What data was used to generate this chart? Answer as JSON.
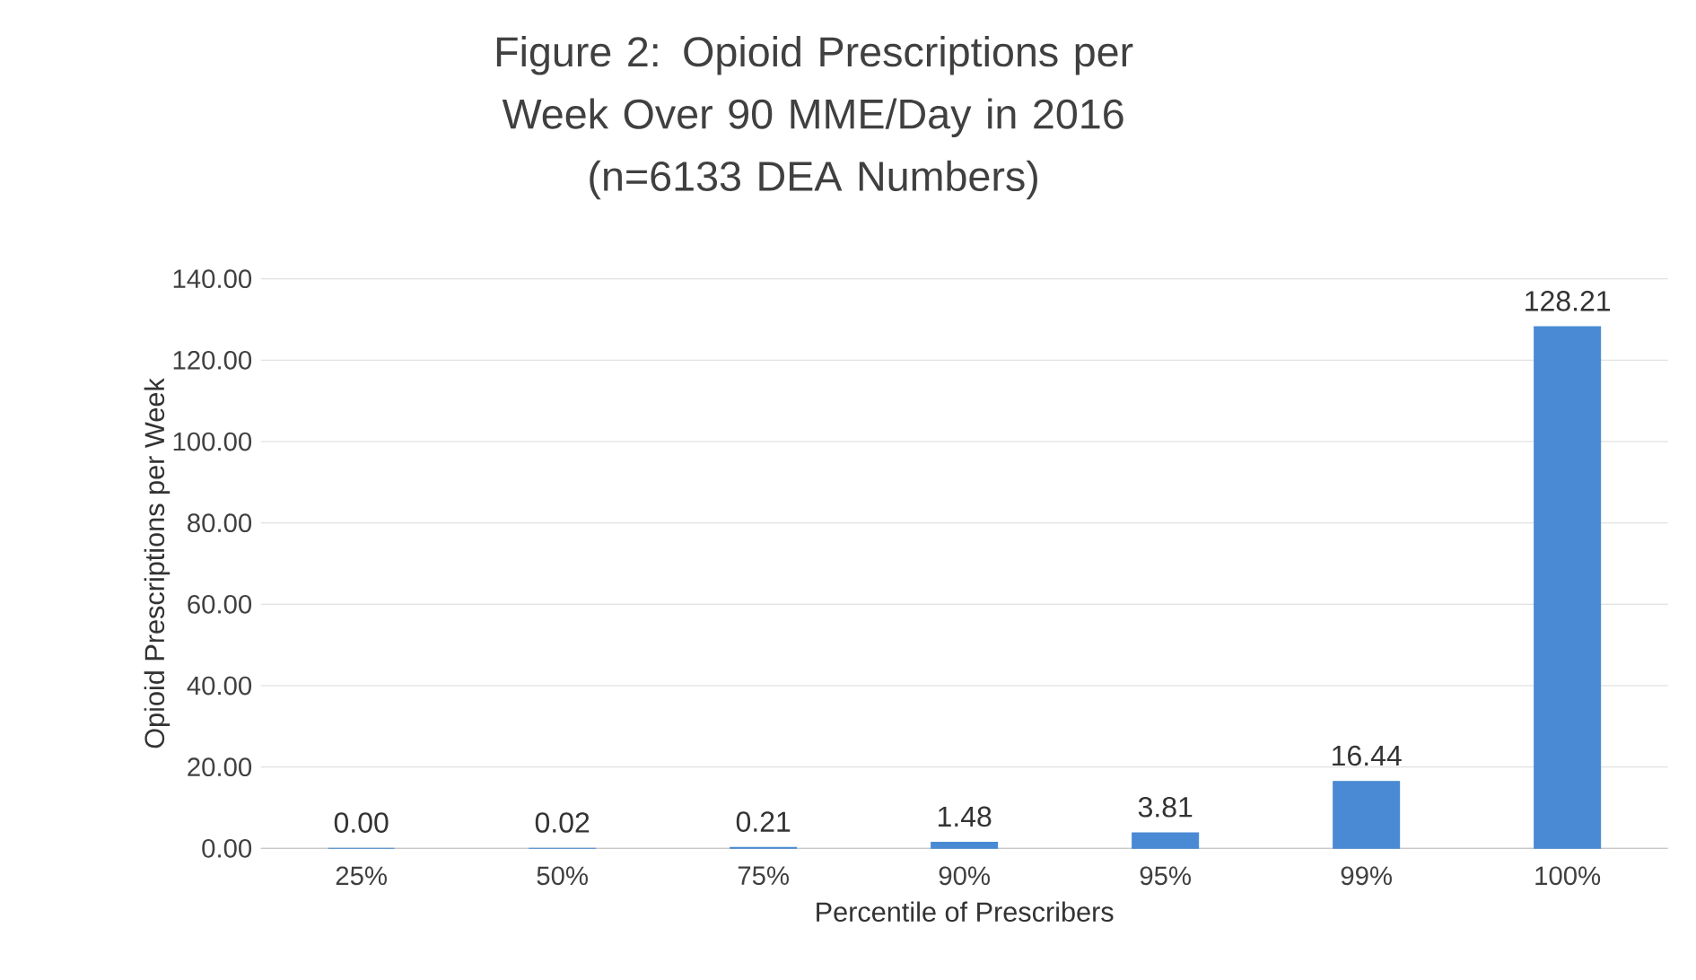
{
  "chart_data": {
    "type": "bar",
    "title": "Figure 2: Opioid Prescriptions per Week Over 90 MME/Day in 2016",
    "subtitle": "(n=6133 DEA Numbers)",
    "xlabel": "Percentile of Prescribers",
    "ylabel": "Opioid Prescriptions per Week",
    "categories": [
      "25%",
      "50%",
      "75%",
      "90%",
      "95%",
      "99%",
      "100%"
    ],
    "values": [
      0,
      0.02,
      0.21,
      1.48,
      3.81,
      16.44,
      128.21
    ],
    "value_labels": [
      "0.00",
      "0.02",
      "0.21",
      "1.48",
      "3.81",
      "16.44",
      "128.21"
    ],
    "color": "#4a8ad4",
    "ylim": [
      0,
      140
    ],
    "yticks": [
      {
        "value": 0,
        "label": "0.00"
      },
      {
        "value": 20,
        "label": "20.00"
      },
      {
        "value": 40,
        "label": "40.00"
      },
      {
        "value": 60,
        "label": "60.00"
      },
      {
        "value": 80,
        "label": "80.00"
      },
      {
        "value": 100,
        "label": "100.00"
      },
      {
        "value": 120,
        "label": "120.00"
      },
      {
        "value": 140,
        "label": "140.00"
      }
    ],
    "grid": "y"
  }
}
